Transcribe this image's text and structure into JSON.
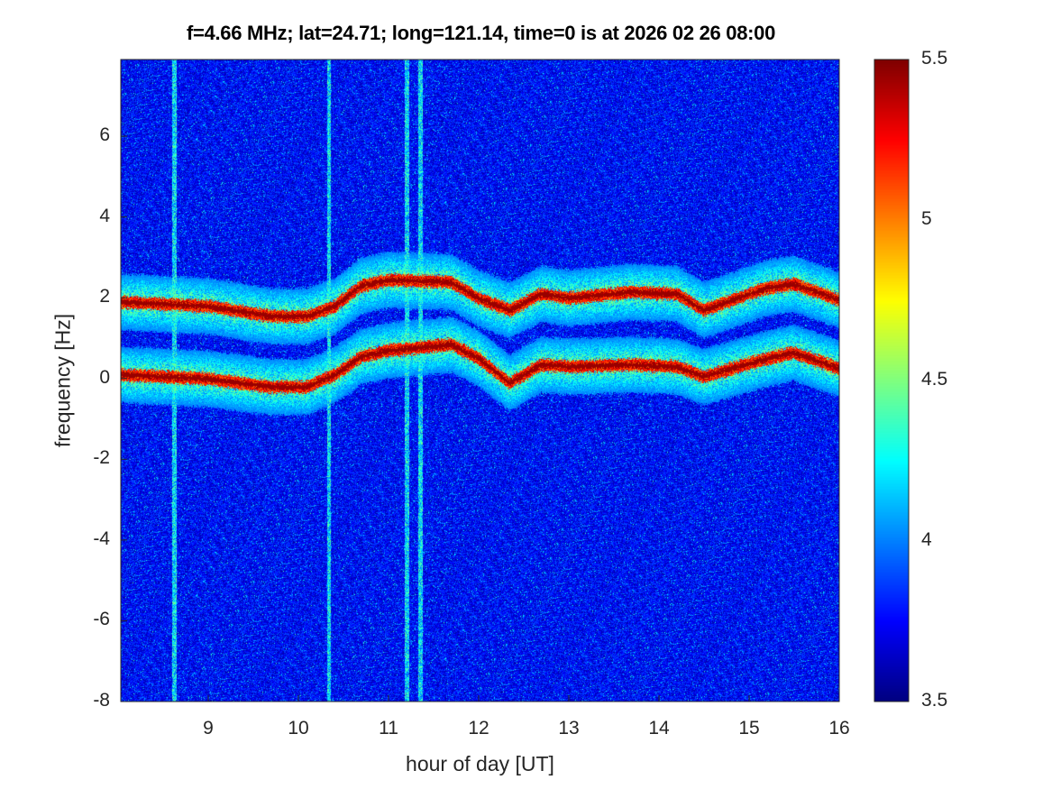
{
  "chart_data": {
    "type": "heatmap",
    "title": "f=4.66 MHz;  lat=24.71; long=121.14, time=0 is at 2026 02 26 08:00",
    "xlabel": "hour of day [UT]",
    "ylabel": "frequency [Hz]",
    "xlim": [
      8.03,
      16
    ],
    "ylim": [
      -8,
      7.9
    ],
    "xticks": [
      "9",
      "10",
      "11",
      "12",
      "13",
      "14",
      "15",
      "16"
    ],
    "xtick_values": [
      9,
      10,
      11,
      12,
      13,
      14,
      15,
      16
    ],
    "yticks": [
      "-8",
      "-6",
      "-4",
      "-2",
      "0",
      "2",
      "4",
      "6"
    ],
    "ytick_values": [
      -8,
      -6,
      -4,
      -2,
      0,
      2,
      4,
      6
    ],
    "colormap": "jet",
    "clim": [
      3.5,
      5.5
    ],
    "colorbar_ticks": [
      "3.5",
      "4",
      "4.5",
      "5",
      "5.5"
    ],
    "colorbar_tick_values": [
      3.5,
      4,
      4.5,
      5,
      5.5
    ],
    "background_level": 3.75,
    "ridges": [
      {
        "hours": [
          8.03,
          8.5,
          9.0,
          9.69,
          10.09,
          10.4,
          10.69,
          11.0,
          11.69,
          12.0,
          12.34,
          12.69,
          13.0,
          13.69,
          14.2,
          14.49,
          15.19,
          15.49,
          16.0
        ],
        "freq": [
          0.1,
          0.05,
          0.0,
          -0.2,
          -0.2,
          0.1,
          0.55,
          0.7,
          0.85,
          0.5,
          -0.1,
          0.35,
          0.3,
          0.35,
          0.3,
          0.05,
          0.5,
          0.65,
          0.25
        ]
      },
      {
        "hours": [
          8.03,
          8.5,
          9.0,
          9.69,
          10.09,
          10.4,
          10.69,
          11.0,
          11.69,
          11.99,
          12.34,
          12.69,
          13.0,
          13.69,
          14.2,
          14.49,
          15.19,
          15.49,
          16.0
        ],
        "freq": [
          1.9,
          1.85,
          1.8,
          1.55,
          1.55,
          1.8,
          2.3,
          2.45,
          2.4,
          2.0,
          1.7,
          2.1,
          2.0,
          2.15,
          2.1,
          1.7,
          2.25,
          2.35,
          1.95
        ]
      }
    ],
    "vertical_stripes_hours": [
      8.62,
      10.33,
      11.2,
      11.35
    ]
  }
}
